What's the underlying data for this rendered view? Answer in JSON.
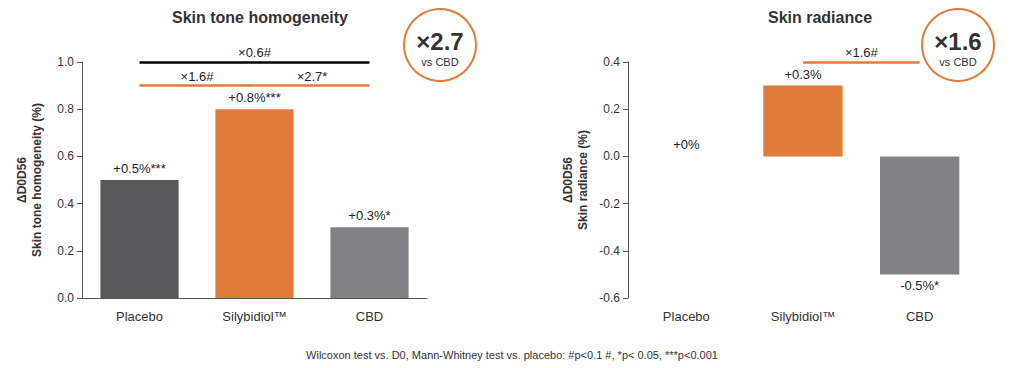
{
  "chart_data": [
    {
      "type": "bar",
      "title": "Skin tone homogeneity",
      "ylabel": "ΔD0D56\nSkin tone homogeneity (%)",
      "categories": [
        "Placebo",
        "Silybidiol™",
        "CBD"
      ],
      "values": [
        0.5,
        0.8,
        0.3
      ],
      "value_labels": [
        "+0.5%***",
        "+0.8%***",
        "+0.3%*"
      ],
      "colors": [
        "#58595b",
        "#e07b39",
        "#808285"
      ],
      "ylim": [
        0,
        1
      ],
      "yticks": [
        {
          "value": 0,
          "label": "0.0"
        },
        0.2,
        0.4,
        0.6,
        0.8,
        {
          "value": 1,
          "label": "1.0"
        }
      ],
      "grid": false,
      "data_labels": true,
      "annotations": [
        {
          "text": "×0.6#",
          "from": "Placebo",
          "to": "CBD",
          "color": "#000000"
        },
        {
          "text": "×1.6#",
          "from": "Placebo",
          "to": "Silybidiol™",
          "color": "#e07b39"
        },
        {
          "text": "×2.7*",
          "from": "Silybidiol™",
          "to": "CBD",
          "color": "#e07b39"
        }
      ],
      "badge": {
        "text": "×2.7",
        "subtext": "vs CBD",
        "color": "#e07b39"
      }
    },
    {
      "type": "bar",
      "title": "Skin radiance",
      "ylabel": "ΔD0D56\nSkin radiance (%)",
      "categories": [
        "Placebo",
        "Silybidiol™",
        "CBD"
      ],
      "values": [
        0,
        0.3,
        -0.5
      ],
      "value_labels": [
        "+0%",
        "+0.3%",
        "-0.5%*"
      ],
      "colors": [
        "#58595b",
        "#e07b39",
        "#808285"
      ],
      "ylim": [
        -0.6,
        0.4
      ],
      "yticks": [
        -0.6,
        -0.4,
        -0.2,
        {
          "value": 0,
          "label": "0.0"
        },
        0.2,
        0.4
      ],
      "grid": false,
      "data_labels": true,
      "annotations": [
        {
          "text": "×1.6#",
          "from": "Silybidiol™",
          "to": "CBD",
          "color": "#e07b39"
        }
      ],
      "badge": {
        "text": "×1.6",
        "subtext": "vs CBD",
        "color": "#e07b39"
      }
    }
  ],
  "note": "Wilcoxon test vs. D0, Mann-Whitney test vs. placebo: #p<0.1 #, *p< 0.05, ***p<0.001"
}
